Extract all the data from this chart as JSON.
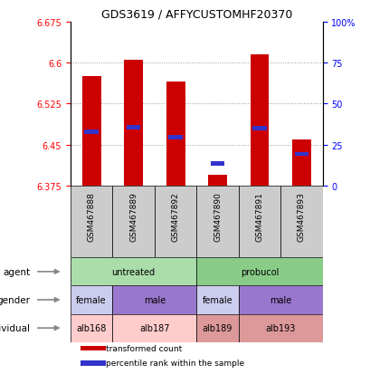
{
  "title": "GDS3619 / AFFYCUSTOMHF20370",
  "samples": [
    "GSM467888",
    "GSM467889",
    "GSM467892",
    "GSM467890",
    "GSM467891",
    "GSM467893"
  ],
  "bar_values": [
    6.575,
    6.605,
    6.565,
    6.395,
    6.615,
    6.46
  ],
  "bar_base": 6.375,
  "percentile_values": [
    6.473,
    6.482,
    6.463,
    6.415,
    6.48,
    6.433
  ],
  "ylim": [
    6.375,
    6.675
  ],
  "yticks_left": [
    6.375,
    6.45,
    6.525,
    6.6,
    6.675
  ],
  "ytick_labels_left": [
    "6.375",
    "6.45",
    "6.525",
    "6.6",
    "6.675"
  ],
  "ytick_labels_right": [
    "0",
    "25",
    "50",
    "75",
    "100%"
  ],
  "right_ticks_pct": [
    0,
    25,
    50,
    75,
    100
  ],
  "bar_color": "#cc0000",
  "percentile_color": "#3333cc",
  "grid_color": "#999999",
  "sample_bg_color": "#cccccc",
  "agent_labels": [
    {
      "text": "untreated",
      "cols": [
        0,
        1,
        2
      ],
      "color": "#aaddaa"
    },
    {
      "text": "probucol",
      "cols": [
        3,
        4,
        5
      ],
      "color": "#88cc88"
    }
  ],
  "gender_labels": [
    {
      "text": "female",
      "cols": [
        0
      ],
      "color": "#ccccee"
    },
    {
      "text": "male",
      "cols": [
        1,
        2
      ],
      "color": "#9977cc"
    },
    {
      "text": "female",
      "cols": [
        3
      ],
      "color": "#ccccee"
    },
    {
      "text": "male",
      "cols": [
        4,
        5
      ],
      "color": "#9977cc"
    }
  ],
  "individual_labels": [
    {
      "text": "alb168",
      "cols": [
        0
      ],
      "color": "#ffcccc"
    },
    {
      "text": "alb187",
      "cols": [
        1,
        2
      ],
      "color": "#ffcccc"
    },
    {
      "text": "alb189",
      "cols": [
        3
      ],
      "color": "#dd9999"
    },
    {
      "text": "alb193",
      "cols": [
        4,
        5
      ],
      "color": "#dd9999"
    }
  ],
  "row_labels": [
    "agent",
    "gender",
    "individual"
  ],
  "legend_items": [
    {
      "color": "#cc0000",
      "label": "transformed count"
    },
    {
      "color": "#3333cc",
      "label": "percentile rank within the sample"
    }
  ],
  "n_cols": 6
}
